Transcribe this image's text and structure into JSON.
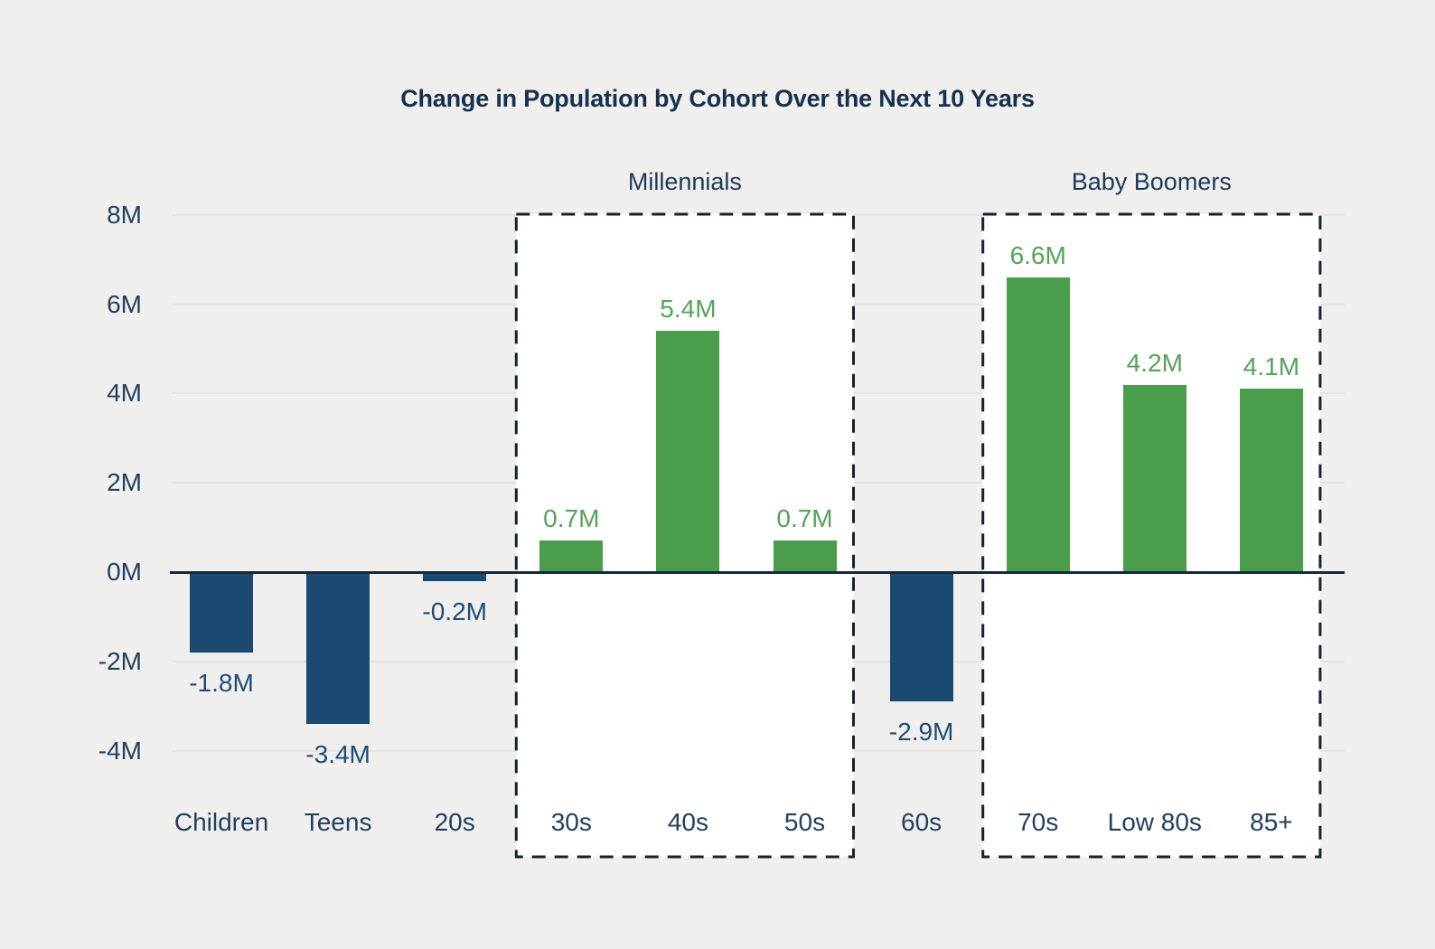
{
  "chart_data": {
    "type": "bar",
    "title": "Change in Population by Cohort Over the Next 10 Years",
    "categories": [
      "Children",
      "Teens",
      "20s",
      "30s",
      "40s",
      "50s",
      "60s",
      "70s",
      "Low 80s",
      "85+"
    ],
    "values": [
      -1.8,
      -3.4,
      -0.2,
      0.7,
      5.4,
      0.7,
      -2.9,
      6.6,
      4.2,
      4.1
    ],
    "value_labels": [
      "-1.8M",
      "-3.4M",
      "-0.2M",
      "0.7M",
      "5.4M",
      "0.7M",
      "-2.9M",
      "6.6M",
      "4.2M",
      "4.1M"
    ],
    "unit": "M",
    "xlabel": "",
    "ylabel": "",
    "ytick_labels": [
      "8M",
      "6M",
      "4M",
      "2M",
      "0M",
      "-2M",
      "-4M"
    ],
    "ytick_values": [
      8,
      6,
      4,
      2,
      0,
      -2,
      -4
    ],
    "ylim": [
      -4,
      8
    ],
    "grid": true,
    "legend": false,
    "groups": [
      {
        "label": "Millennials",
        "start_index": 3,
        "end_index": 5
      },
      {
        "label": "Baby Boomers",
        "start_index": 7,
        "end_index": 9
      }
    ]
  },
  "colors": {
    "background": "#f0efed",
    "bar_positive": "#4a9d4a",
    "bar_negative": "#1a4a70",
    "value_label_positive": "#55a356",
    "value_label_negative": "#1d4c77",
    "axis_line": "#15293c",
    "gridline": "#e4e3e0",
    "tick_text": "#21405f",
    "title_text": "#14314f",
    "group_box_border": "#15222e",
    "group_box_fill": "#ffffff"
  }
}
